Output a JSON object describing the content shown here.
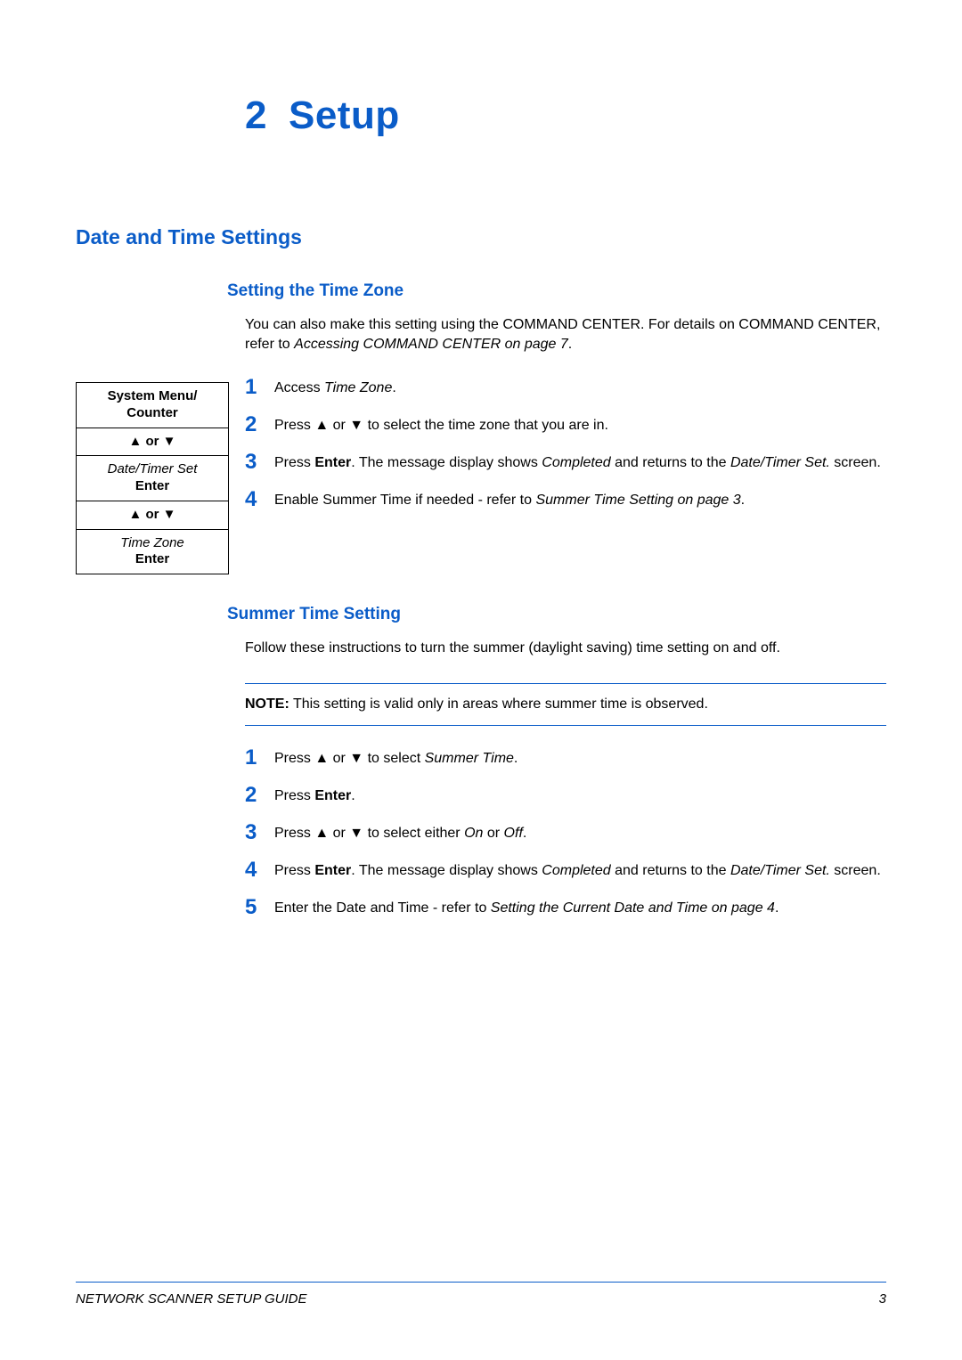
{
  "colors": {
    "accent": "#0a5cc8",
    "text": "#000000",
    "background": "#ffffff"
  },
  "typography": {
    "body_fontsize_pt": 12,
    "chapter_fontsize_pt": 33,
    "h1_fontsize_pt": 17,
    "h2_fontsize_pt": 14,
    "step_number_fontsize_pt": 18,
    "font_family": "Arial, Helvetica, sans-serif"
  },
  "chapter": {
    "number": "2",
    "title": "Setup"
  },
  "section1": {
    "heading": "Date and Time Settings"
  },
  "subsection1": {
    "heading": "Setting the Time Zone",
    "intro_pre": "You can also make this setting using the COMMAND CENTER. For details on COMMAND CENTER,  refer to ",
    "intro_ref": "Accessing COMMAND CENTER on page 7",
    "intro_post": "."
  },
  "menu_box": {
    "r1_l1": "System Menu/",
    "r1_l2": "Counter",
    "r2": "▲ or ▼",
    "r3_l1": "Date/Timer Set",
    "r3_l2": "Enter",
    "r4": "▲ or ▼",
    "r5_l1": "Time Zone",
    "r5_l2": "Enter"
  },
  "steps1": {
    "s1": {
      "num": "1",
      "text_pre": "Access ",
      "text_it": "Time Zone",
      "text_post": "."
    },
    "s2": {
      "num": "2",
      "text_pre": "Press ▲ or ▼ to select the time zone that you are in."
    },
    "s3": {
      "num": "3",
      "t1": "Press ",
      "t2_bold": "Enter",
      "t3": ". The message display shows ",
      "t4_it": "Completed",
      "t5": " and returns to the ",
      "t6_it": "Date/Timer Set.",
      "t7": " screen."
    },
    "s4": {
      "num": "4",
      "t1": "Enable Summer Time if needed - refer to ",
      "t2_it": "Summer Time Setting on page 3",
      "t3": "."
    }
  },
  "subsection2": {
    "heading": "Summer Time Setting",
    "intro": "Follow these instructions to turn the summer (daylight saving) time setting on and off."
  },
  "note": {
    "label": "NOTE:",
    "text": " This setting is valid only in areas where summer time is observed."
  },
  "steps2": {
    "s1": {
      "num": "1",
      "t1": "Press ▲ or ▼ to select ",
      "t2_it": "Summer Time",
      "t3": "."
    },
    "s2": {
      "num": "2",
      "t1": "Press ",
      "t2_bold": "Enter",
      "t3": "."
    },
    "s3": {
      "num": "3",
      "t1": "Press ▲ or ▼ to select either ",
      "t2_it": "On",
      "t3": " or ",
      "t4_it": "Off",
      "t5": "."
    },
    "s4": {
      "num": "4",
      "t1": "Press ",
      "t2_bold": "Enter",
      "t3": ". The message display shows ",
      "t4_it": "Completed",
      "t5": " and returns to the ",
      "t6_it": "Date/Timer Set.",
      "t7": " screen."
    },
    "s5": {
      "num": "5",
      "t1": "Enter the Date and Time - refer to ",
      "t2_it": "Setting the Current Date and Time on page 4",
      "t3": "."
    }
  },
  "footer": {
    "title": "NETWORK SCANNER SETUP GUIDE",
    "page": "3"
  }
}
